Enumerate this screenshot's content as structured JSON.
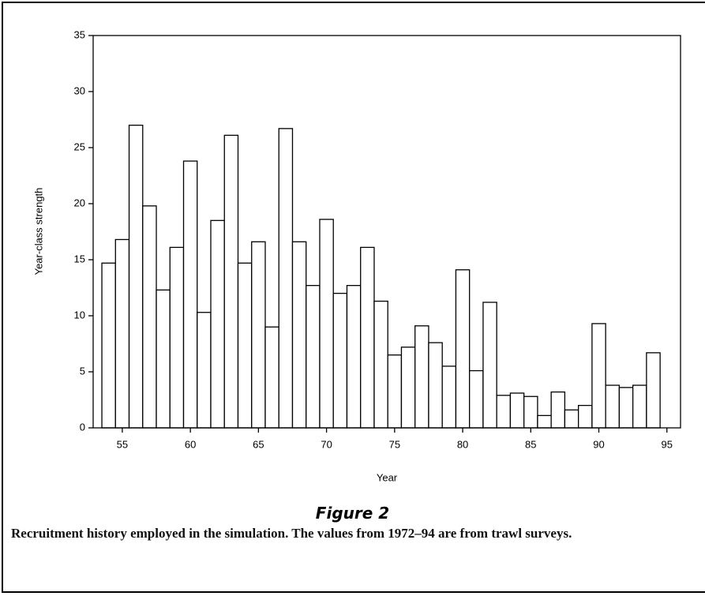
{
  "chart_data": {
    "type": "bar",
    "x": [
      54,
      55,
      56,
      57,
      58,
      59,
      60,
      61,
      62,
      63,
      64,
      65,
      66,
      67,
      68,
      69,
      70,
      71,
      72,
      73,
      74,
      75,
      76,
      77,
      78,
      79,
      80,
      81,
      82,
      83,
      84,
      85,
      86,
      87,
      88,
      89,
      90,
      91,
      92,
      93,
      94
    ],
    "values": [
      14.7,
      16.8,
      27.0,
      19.8,
      12.3,
      16.1,
      23.8,
      10.3,
      18.5,
      26.1,
      14.7,
      16.6,
      9.0,
      26.7,
      16.6,
      12.7,
      18.6,
      12.0,
      12.7,
      16.1,
      11.3,
      6.5,
      7.2,
      9.1,
      7.6,
      5.5,
      14.1,
      5.1,
      11.2,
      2.9,
      3.1,
      2.8,
      1.1,
      3.2,
      1.6,
      2.0,
      9.3,
      3.8,
      3.6,
      3.8,
      6.7
    ],
    "color": "#ffffff",
    "xlabel": "Year",
    "ylabel": "Year-class strength",
    "xlim": [
      52.86,
      96.0
    ],
    "ylim": [
      0,
      35
    ],
    "xticks": [
      55,
      60,
      65,
      70,
      75,
      80,
      85,
      90,
      95
    ],
    "yticks": [
      0,
      5,
      10,
      15,
      20,
      25,
      30,
      35
    ],
    "grid": false
  },
  "caption": {
    "label": "Figure 2",
    "text": "Recruitment history employed in the simulation. The values from 1972–94 are from trawl surveys."
  }
}
